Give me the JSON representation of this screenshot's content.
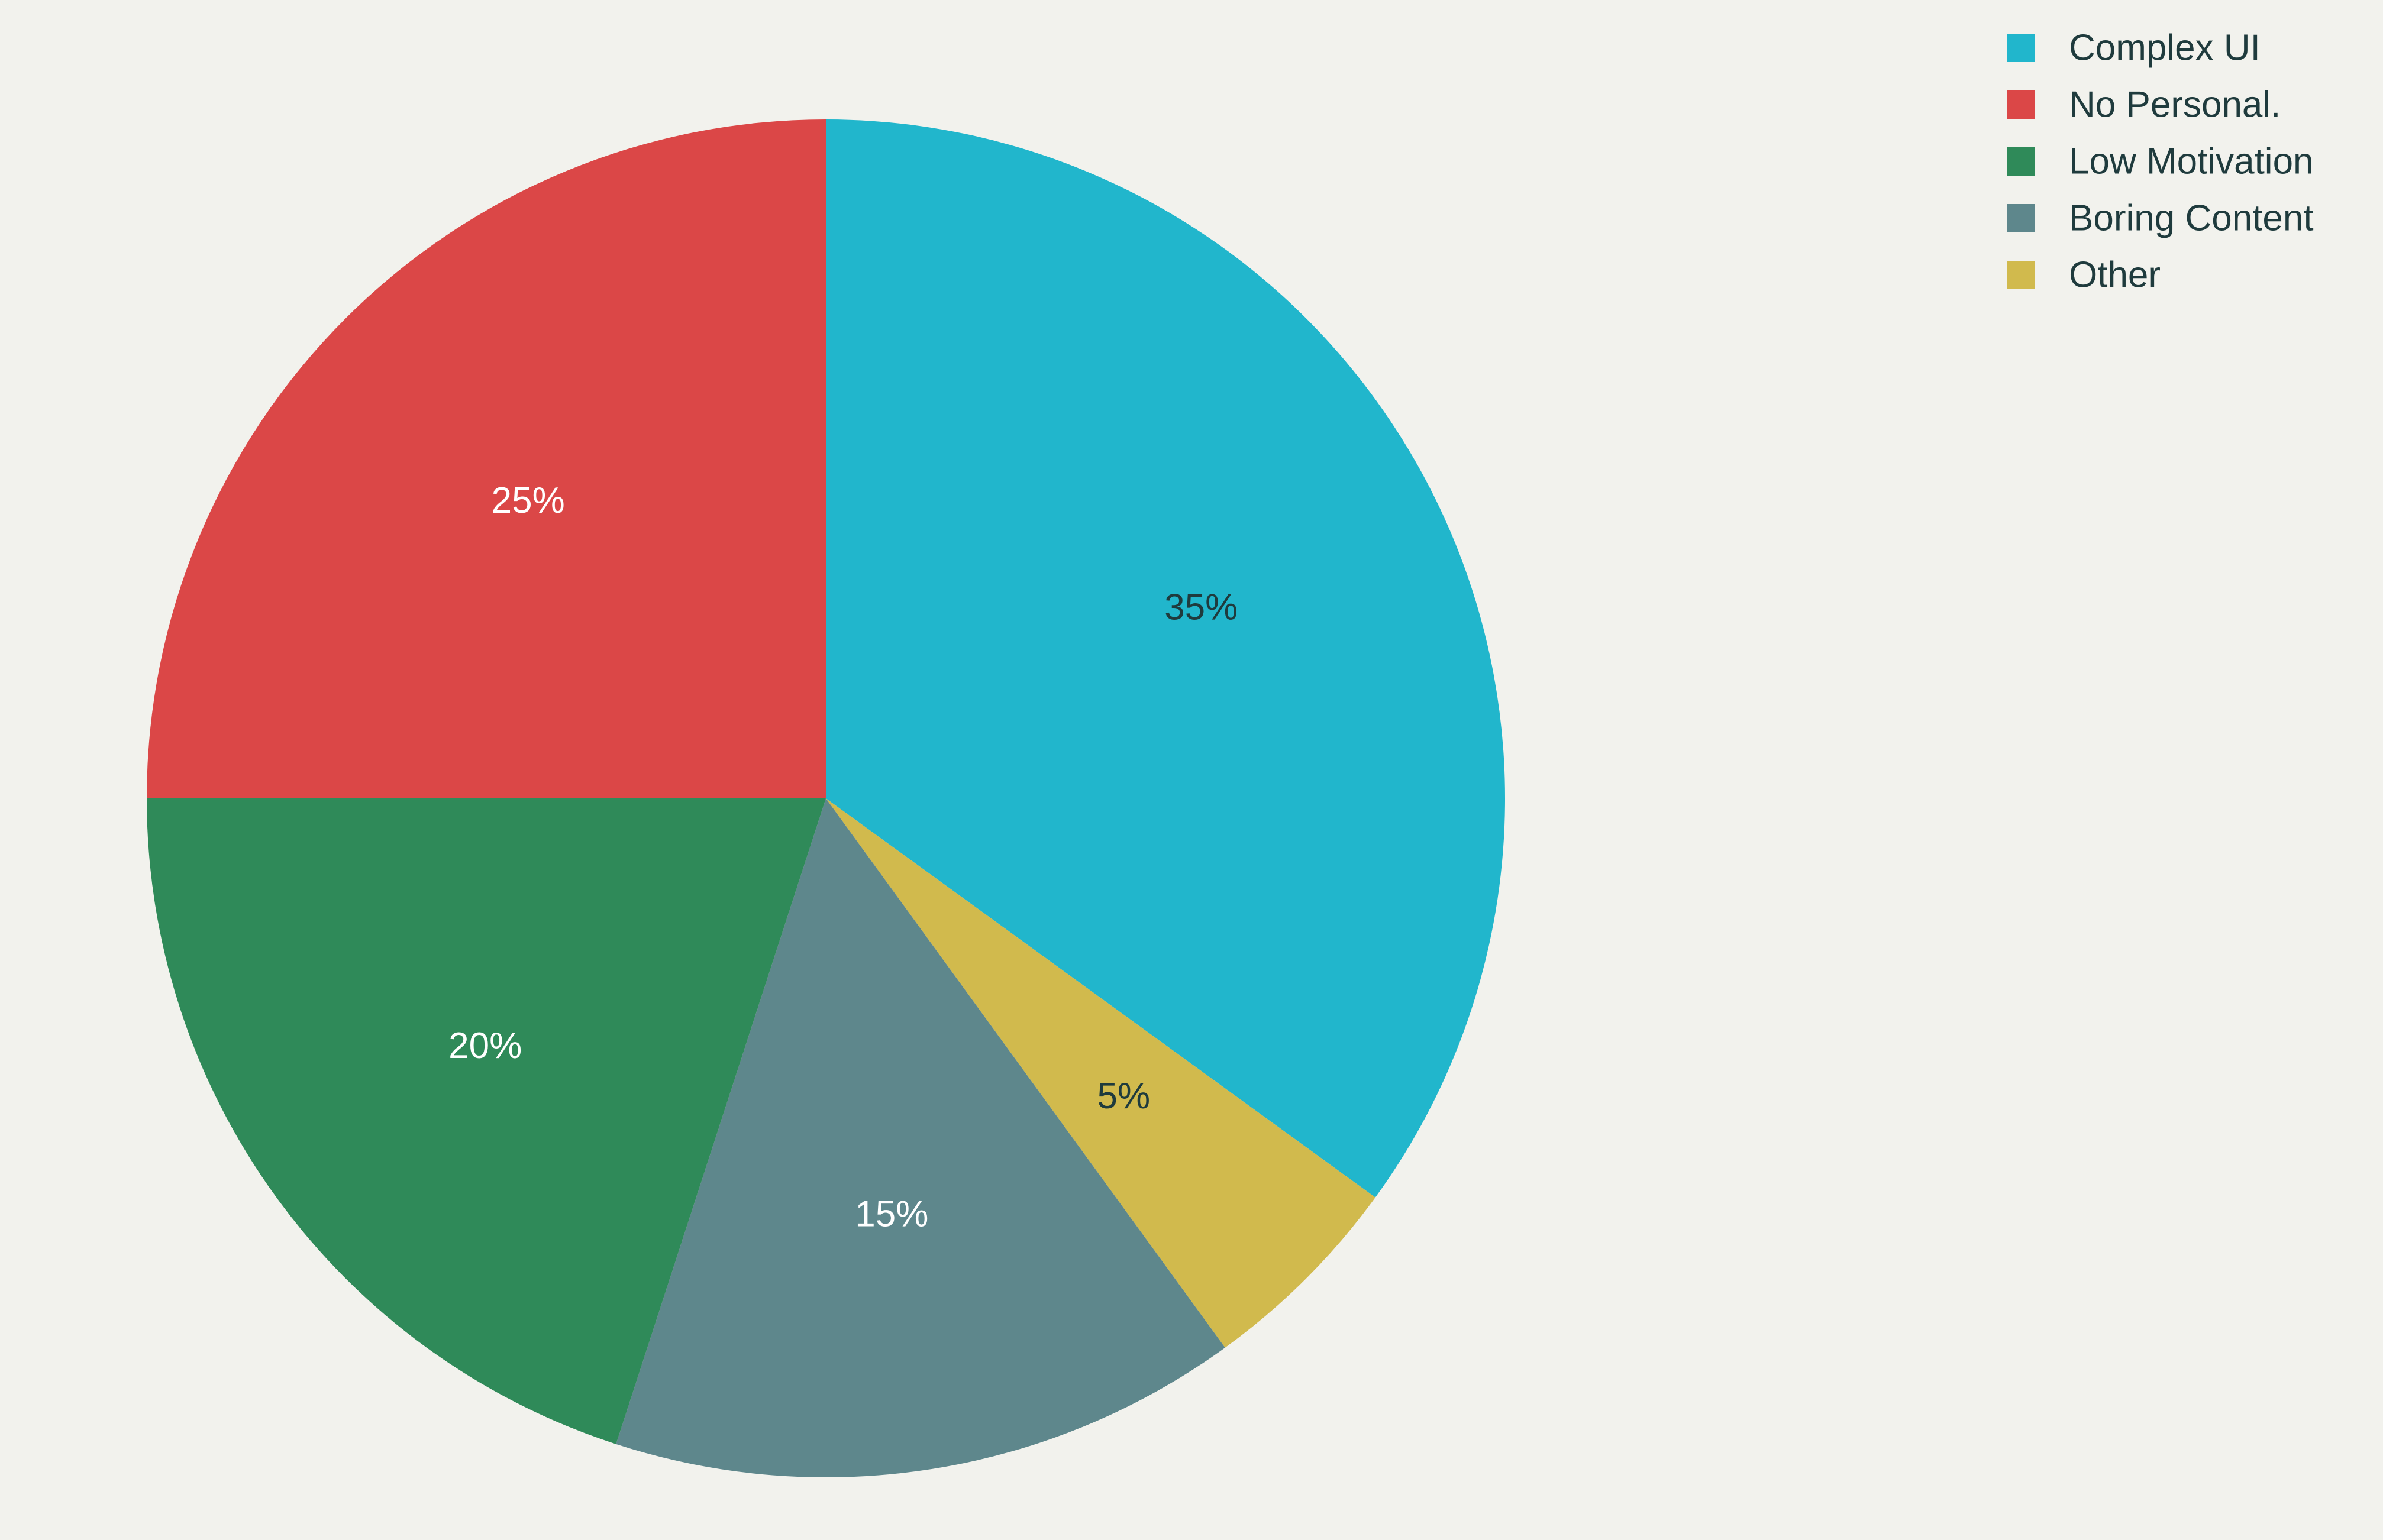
{
  "chart_data": {
    "type": "pie",
    "title": "",
    "slices": [
      {
        "label": "Complex UI",
        "value": 35,
        "display": "35%",
        "color": "#21b6cc",
        "label_color": "#1f3b3d"
      },
      {
        "label": "Other",
        "value": 5,
        "display": "5%",
        "color": "#d1ba4d",
        "label_color": "#1f3b3d"
      },
      {
        "label": "Boring Content",
        "value": 15,
        "display": "15%",
        "color": "#5e878c",
        "label_color": "#ffffff"
      },
      {
        "label": "Low Motivation",
        "value": 20,
        "display": "20%",
        "color": "#2f8a59",
        "label_color": "#ffffff"
      },
      {
        "label": "No Personal.",
        "value": 25,
        "display": "25%",
        "color": "#db4747",
        "label_color": "#ffffff"
      }
    ],
    "legend": {
      "placement": "top-right",
      "entries": [
        "Complex UI",
        "No Personal.",
        "Low Motivation",
        "Boring Content",
        "Other"
      ]
    },
    "background": "#f2f2ed",
    "start_angle": "12 o'clock",
    "direction": "clockwise"
  }
}
